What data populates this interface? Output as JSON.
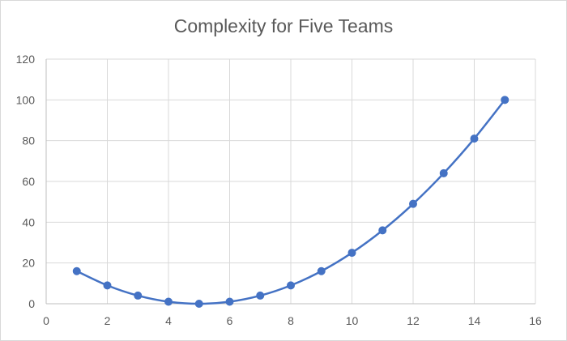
{
  "chart_data": {
    "type": "scatter",
    "title": "Complexity for Five Teams",
    "xlabel": "",
    "ylabel": "",
    "xlim": [
      0,
      16
    ],
    "ylim": [
      0,
      120
    ],
    "x_ticks": [
      0,
      2,
      4,
      6,
      8,
      10,
      12,
      14,
      16
    ],
    "y_ticks": [
      0,
      20,
      40,
      60,
      80,
      100,
      120
    ],
    "grid": "on",
    "legend": "none",
    "series": [
      {
        "x": [
          1,
          2,
          3,
          4,
          5,
          6,
          7,
          8,
          9,
          10,
          11,
          12,
          13,
          14,
          15
        ],
        "y": [
          16,
          9,
          4,
          1,
          0,
          1,
          4,
          9,
          16,
          25,
          36,
          49,
          64,
          81,
          100
        ],
        "color": "#4472c4",
        "style": "smooth-line-with-markers"
      }
    ]
  }
}
